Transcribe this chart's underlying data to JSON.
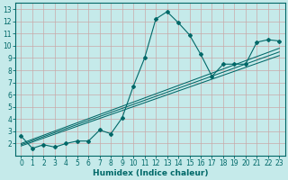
{
  "xlabel": "Humidex (Indice chaleur)",
  "ylabel": "",
  "xlim": [
    -0.5,
    23.5
  ],
  "ylim": [
    1.0,
    13.5
  ],
  "xticks": [
    0,
    1,
    2,
    3,
    4,
    5,
    6,
    7,
    8,
    9,
    10,
    11,
    12,
    13,
    14,
    15,
    16,
    17,
    18,
    19,
    20,
    21,
    22,
    23
  ],
  "yticks": [
    2,
    3,
    4,
    5,
    6,
    7,
    8,
    9,
    10,
    11,
    12,
    13
  ],
  "bg_color": "#c5eaea",
  "grid_color": "#aad4d4",
  "line_color": "#006868",
  "series1_x": [
    0,
    1,
    2,
    3,
    4,
    5,
    6,
    7,
    8,
    9,
    10,
    11,
    12,
    13,
    14,
    15,
    16,
    17,
    18,
    19,
    20,
    21,
    22,
    23
  ],
  "series1_y": [
    2.6,
    1.6,
    1.9,
    1.7,
    2.0,
    2.2,
    2.2,
    3.1,
    2.8,
    4.1,
    6.7,
    9.0,
    12.2,
    12.8,
    11.9,
    10.9,
    9.3,
    7.5,
    8.5,
    8.5,
    8.5,
    10.3,
    10.5,
    10.4
  ],
  "series2_x": [
    0,
    23
  ],
  "series2_y": [
    1.8,
    9.2
  ],
  "series3_x": [
    0,
    23
  ],
  "series3_y": [
    1.9,
    9.5
  ],
  "series4_x": [
    0,
    23
  ],
  "series4_y": [
    2.0,
    9.8
  ],
  "tick_fontsize": 5.5,
  "xlabel_fontsize": 6.5
}
